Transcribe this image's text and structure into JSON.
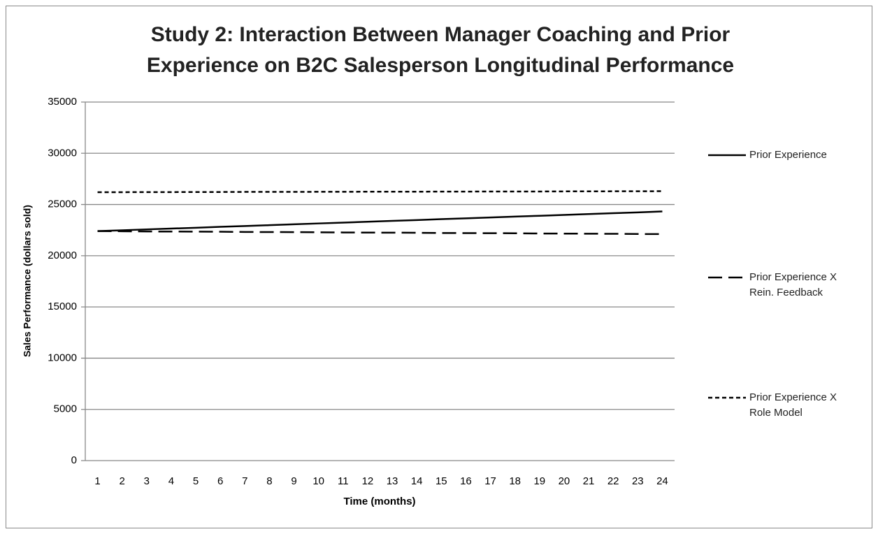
{
  "chart_data": {
    "type": "line",
    "title": "Study 2:  Interaction Between Manager Coaching and Prior Experience on B2C Salesperson Longitudinal Performance",
    "x_label": "Time (months)",
    "y_label": "Sales Performance (dollars sold)",
    "x": [
      1,
      2,
      3,
      4,
      5,
      6,
      7,
      8,
      9,
      10,
      11,
      12,
      13,
      14,
      15,
      16,
      17,
      18,
      19,
      20,
      21,
      22,
      23,
      24
    ],
    "xlim": [
      0.5,
      24.5
    ],
    "ylim": [
      0,
      35000
    ],
    "yticks": [
      0,
      5000,
      10000,
      15000,
      20000,
      25000,
      30000,
      35000
    ],
    "grid": true,
    "legend": "right",
    "series": [
      {
        "name": "Prior Experience",
        "color": "#000000",
        "linestyle": "solid",
        "values": [
          22400,
          22480,
          22570,
          22650,
          22730,
          22820,
          22900,
          22980,
          23070,
          23150,
          23230,
          23320,
          23400,
          23480,
          23570,
          23650,
          23730,
          23820,
          23900,
          23980,
          24070,
          24150,
          24230,
          24320
        ]
      },
      {
        "name": "Prior Experience X Rein. Feedback",
        "color": "#000000",
        "linestyle": "dashed",
        "values": [
          22400,
          22390,
          22370,
          22360,
          22350,
          22340,
          22320,
          22310,
          22300,
          22290,
          22270,
          22260,
          22250,
          22240,
          22220,
          22210,
          22200,
          22190,
          22170,
          22160,
          22150,
          22140,
          22120,
          22110
        ]
      },
      {
        "name": "Prior Experience X Role Model",
        "color": "#000000",
        "linestyle": "dotted",
        "values": [
          26200,
          26200,
          26210,
          26210,
          26220,
          26220,
          26230,
          26230,
          26230,
          26240,
          26240,
          26250,
          26250,
          26250,
          26260,
          26260,
          26270,
          26270,
          26270,
          26280,
          26280,
          26290,
          26290,
          26300
        ]
      }
    ]
  }
}
